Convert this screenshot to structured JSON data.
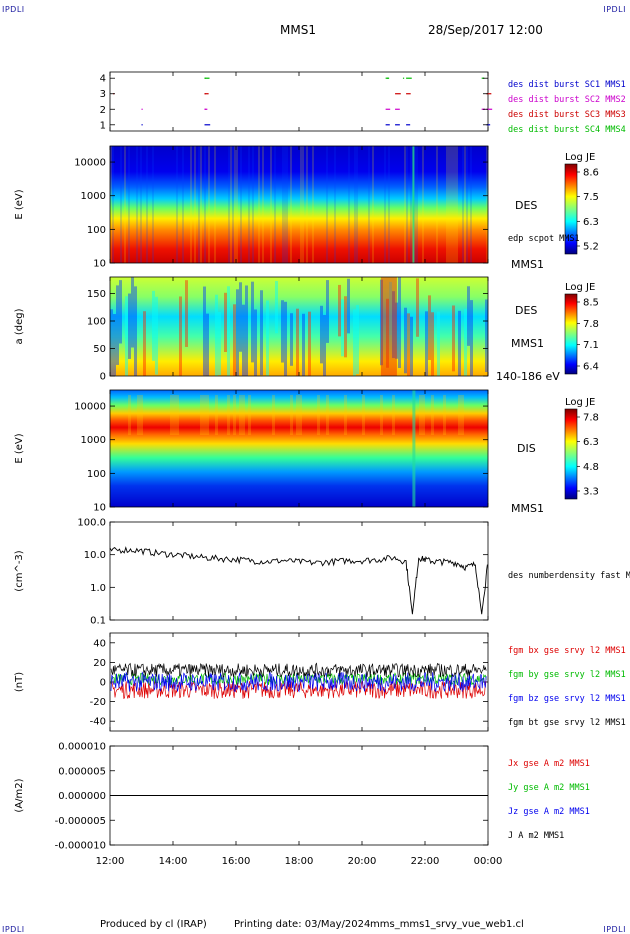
{
  "header": {
    "left_tag": "IPDLI",
    "right_tag": "IPDLI",
    "spacecraft": "MMS1",
    "datetime": "28/Sep/2017 12:00"
  },
  "footer": {
    "produced_by": "Produced by cl (IRAP)",
    "printing_date": "Printing date: 03/May/2024",
    "script_name": "mms_mms1_srvy_vue_web1.cl",
    "left_tag": "IPDLI",
    "right_tag": "IPDLI"
  },
  "chart_data": [
    {
      "id": "burst",
      "type": "scatter",
      "y_ticks": [
        "1",
        "2",
        "3",
        "4"
      ],
      "ylim": [
        0.6,
        4.4
      ],
      "legend": [
        "des dist burst SC1 MMS1",
        "des dist burst SC2 MMS2",
        "des dist burst SC3 MMS3",
        "des dist burst SC4 MMS4"
      ],
      "series_colors": [
        "#0000cc",
        "#cc00cc",
        "#cc0000",
        "#00bb00"
      ],
      "burst_times_h": [
        15.0,
        20.75,
        21.05,
        21.4,
        23.8,
        23.95
      ]
    },
    {
      "id": "des_spec",
      "type": "heatmap",
      "ylabel": "E (eV)",
      "y_scale": "log",
      "ylim": [
        10,
        30000
      ],
      "y_ticks": [
        "10",
        "100",
        "1000",
        "10000"
      ],
      "right_label": "DES",
      "overlay_label": "edp scpot MMS1",
      "below_label": "MMS1",
      "colorbar": {
        "title": "Log JE",
        "ticks": [
          "8.6",
          "7.5",
          "6.3",
          "5.2"
        ]
      }
    },
    {
      "id": "des_pad",
      "type": "heatmap",
      "ylabel": "a (deg)",
      "ylim": [
        0,
        180
      ],
      "y_ticks": [
        "0",
        "50",
        "100",
        "150"
      ],
      "right_label": "DES",
      "side_label": "MMS1",
      "below_label": "140-186 eV",
      "colorbar": {
        "title": "Log JE",
        "ticks": [
          "8.5",
          "7.8",
          "7.1",
          "6.4"
        ]
      }
    },
    {
      "id": "dis_spec",
      "type": "heatmap",
      "ylabel": "E (eV)",
      "y_scale": "log",
      "ylim": [
        10,
        30000
      ],
      "y_ticks": [
        "10",
        "100",
        "1000",
        "10000"
      ],
      "right_label": "DIS",
      "below_label": "MMS1",
      "colorbar": {
        "title": "Log JE",
        "ticks": [
          "7.8",
          "6.3",
          "4.8",
          "3.3"
        ]
      }
    },
    {
      "id": "density",
      "type": "line",
      "ylabel": "(cm^-3)",
      "y_scale": "log",
      "ylim": [
        0.1,
        100
      ],
      "y_ticks": [
        "0.1",
        "1.0",
        "10.0",
        "100.0"
      ],
      "legend": [
        "des numberdensity fast M"
      ],
      "x": [
        12.0,
        12.5,
        13.0,
        13.5,
        14.0,
        14.5,
        15.0,
        15.5,
        16.0,
        16.5,
        17.0,
        17.5,
        18.0,
        18.5,
        19.0,
        19.5,
        20.0,
        20.5,
        21.0,
        21.4,
        21.6,
        21.8,
        22.0,
        22.3,
        22.6,
        23.0,
        23.3,
        23.6,
        23.8,
        24.0
      ],
      "values": [
        13,
        14,
        13,
        11,
        10,
        9,
        8,
        7.5,
        7,
        6.5,
        6,
        6.5,
        6,
        5.5,
        6,
        6.5,
        6.5,
        7,
        8,
        6,
        0.15,
        8,
        7,
        6,
        6,
        5.5,
        4,
        5,
        0.15,
        6
      ]
    },
    {
      "id": "fgm",
      "type": "line",
      "ylabel": "(nT)",
      "ylim": [
        -50,
        50
      ],
      "y_ticks": [
        "-40",
        "-20",
        "0",
        "20",
        "40"
      ],
      "legend": [
        "fgm bx gse srvy l2 MMS1",
        "fgm by gse srvy l2 MMS1",
        "fgm bz gse srvy l2 MMS1",
        "fgm bt gse srvy l2 MMS1"
      ],
      "series": [
        {
          "color": "#dd0000",
          "mean": -8,
          "spread": 9
        },
        {
          "color": "#00bb00",
          "mean": 3,
          "spread": 6
        },
        {
          "color": "#0000ee",
          "mean": 0,
          "spread": 10
        },
        {
          "color": "#000000",
          "mean": 12,
          "spread": 7
        }
      ]
    },
    {
      "id": "current",
      "type": "line",
      "ylabel": "(A/m2)",
      "ylim": [
        -0.0001,
        0.0001
      ],
      "y_ticks": [
        "-0.000010",
        "-0.000005",
        "0.000000",
        "0.000005",
        "0.000010"
      ],
      "legend": [
        "Jx gse A m2 MMS1",
        "Jy gse A m2 MMS1",
        "Jz gse A m2 MMS1",
        "J A m2 MMS1"
      ],
      "legend_colors": [
        "#dd0000",
        "#00bb00",
        "#0000ee",
        "#000000"
      ],
      "values": [
        0,
        0
      ]
    }
  ],
  "time_axis": {
    "ticks": [
      "12:00",
      "14:00",
      "16:00",
      "18:00",
      "20:00",
      "22:00",
      "00:00"
    ],
    "tick_hours": [
      12,
      14,
      16,
      18,
      20,
      22,
      24
    ],
    "xlim": [
      12,
      24
    ]
  }
}
